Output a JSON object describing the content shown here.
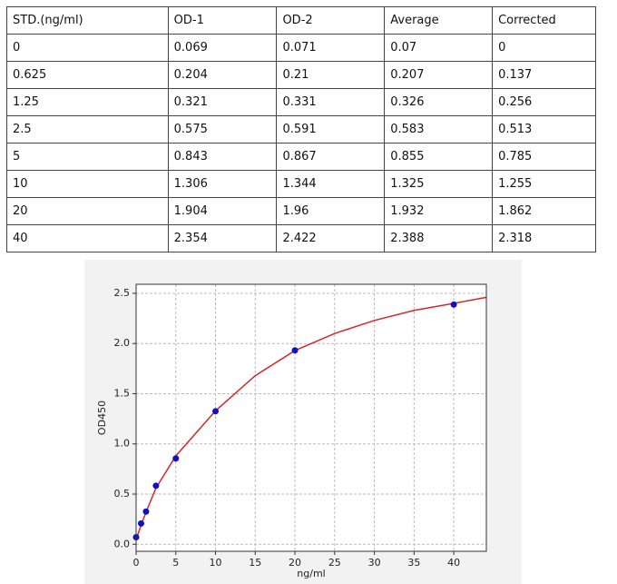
{
  "table": {
    "header": [
      "STD.(ng/ml)",
      "OD-1",
      "OD-2",
      "Average",
      "Corrected"
    ],
    "rows": [
      [
        "0",
        "0.069",
        "0.071",
        "0.07",
        "0"
      ],
      [
        "0.625",
        "0.204",
        "0.21",
        "0.207",
        "0.137"
      ],
      [
        "1.25",
        "0.321",
        "0.331",
        "0.326",
        "0.256"
      ],
      [
        "2.5",
        "0.575",
        "0.591",
        "0.583",
        "0.513"
      ],
      [
        "5",
        "0.843",
        "0.867",
        "0.855",
        "0.785"
      ],
      [
        "10",
        "1.306",
        "1.344",
        "1.325",
        "1.255"
      ],
      [
        "20",
        "1.904",
        "1.96",
        "1.932",
        "1.862"
      ],
      [
        "40",
        "2.354",
        "2.422",
        "2.388",
        "2.318"
      ]
    ]
  },
  "chart_data": {
    "type": "scatter",
    "x_label": "ng/ml",
    "y_label": "OD450",
    "xlim": [
      0,
      44.1
    ],
    "ylim": [
      -0.07,
      2.59
    ],
    "xticks": [
      0,
      5,
      10,
      15,
      20,
      25,
      30,
      35,
      40
    ],
    "yticks": [
      {
        "value": 0,
        "label": "0.0"
      },
      {
        "value": 0.5,
        "label": "0.5"
      },
      {
        "value": 1,
        "label": "1.0"
      },
      {
        "value": 1.5,
        "label": "1.5"
      },
      {
        "value": 2,
        "label": "2.0"
      },
      {
        "value": 2.5,
        "label": "2.5"
      }
    ],
    "grid": true,
    "series": [
      {
        "mark": "line",
        "color": "#d62728",
        "x": [
          0,
          0.625,
          1.25,
          2.5,
          5,
          10,
          15,
          20,
          25,
          30,
          35,
          40,
          44.1
        ],
        "values": [
          0.05,
          0.19,
          0.32,
          0.56,
          0.88,
          1.33,
          1.68,
          1.93,
          2.1,
          2.23,
          2.33,
          2.4,
          2.46
        ]
      },
      {
        "mark": "dot",
        "color": "#1010cc",
        "x": [
          0,
          0.625,
          1.25,
          2.5,
          5,
          10,
          20,
          40
        ],
        "values": [
          0.07,
          0.207,
          0.326,
          0.583,
          0.855,
          1.325,
          1.932,
          2.388
        ]
      }
    ]
  }
}
